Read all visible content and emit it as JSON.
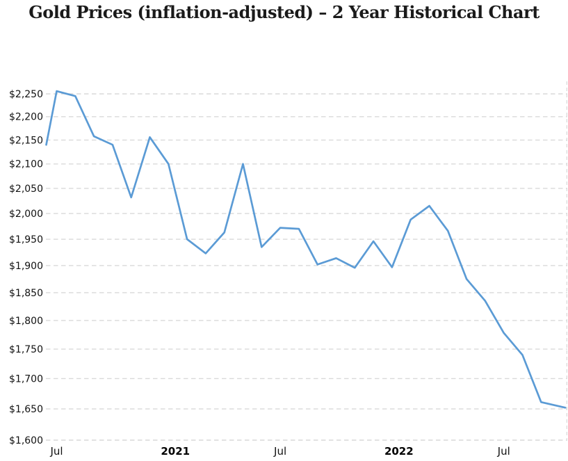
{
  "page": {
    "title": "Gold Prices (inflation-adjusted) – 2 Year Historical Chart"
  },
  "colors": {
    "background": "#ffffff",
    "line": "#5b9bd5",
    "grid": "#d9d9d9",
    "title_text": "#1a1a1a",
    "axis_text": "#111111"
  },
  "chart_data": {
    "type": "line",
    "title": "Gold Prices (inflation-adjusted) – 2 Year Historical Chart",
    "legend": "none",
    "grid": "horizontal-dashed",
    "ylabel": "",
    "xlabel": "",
    "y_axis": {
      "scale": "log",
      "unit": "USD per troy ounce",
      "min": 1600,
      "max": 2250,
      "tick_step": 50,
      "ticks": [
        {
          "value": 2250,
          "label": "$2,250"
        },
        {
          "value": 2200,
          "label": "$2,200"
        },
        {
          "value": 2150,
          "label": "$2,150"
        },
        {
          "value": 2100,
          "label": "$2,100"
        },
        {
          "value": 2050,
          "label": "$2,050"
        },
        {
          "value": 2000,
          "label": "$2,000"
        },
        {
          "value": 1950,
          "label": "$1,950"
        },
        {
          "value": 1900,
          "label": "$1,900"
        },
        {
          "value": 1850,
          "label": "$1,850"
        },
        {
          "value": 1800,
          "label": "$1,800"
        },
        {
          "value": 1750,
          "label": "$1,750"
        },
        {
          "value": 1700,
          "label": "$1,700"
        },
        {
          "value": 1650,
          "label": "$1,650"
        },
        {
          "value": 1600,
          "label": "$1,600"
        }
      ]
    },
    "x_axis": {
      "unit": "months, t = months since Jul 2020",
      "ticks": [
        {
          "t": 0,
          "label": "Jul",
          "bold": false
        },
        {
          "t": 6.37,
          "label": "2021",
          "bold": true
        },
        {
          "t": 12,
          "label": "Jul",
          "bold": false
        },
        {
          "t": 18.37,
          "label": "2022",
          "bold": true
        },
        {
          "t": 24,
          "label": "Jul",
          "bold": false
        }
      ]
    },
    "series": [
      {
        "name": "Gold price (inflation-adjusted)",
        "points": [
          {
            "date": "2020-06",
            "t": -0.56,
            "value": 2140
          },
          {
            "date": "2020-07",
            "t": 0,
            "value": 2256
          },
          {
            "date": "2020-08",
            "t": 1,
            "value": 2245
          },
          {
            "date": "2020-09",
            "t": 2,
            "value": 2158
          },
          {
            "date": "2020-10",
            "t": 3,
            "value": 2140
          },
          {
            "date": "2020-11",
            "t": 4,
            "value": 2032
          },
          {
            "date": "2020-12",
            "t": 5,
            "value": 2156
          },
          {
            "date": "2021-01",
            "t": 6,
            "value": 2100
          },
          {
            "date": "2021-02",
            "t": 7,
            "value": 1950
          },
          {
            "date": "2021-03",
            "t": 8,
            "value": 1923
          },
          {
            "date": "2021-04",
            "t": 9,
            "value": 1963
          },
          {
            "date": "2021-05",
            "t": 10,
            "value": 2100
          },
          {
            "date": "2021-06",
            "t": 11,
            "value": 1935
          },
          {
            "date": "2021-07",
            "t": 12,
            "value": 1972
          },
          {
            "date": "2021-08",
            "t": 13,
            "value": 1970
          },
          {
            "date": "2021-09",
            "t": 14,
            "value": 1902
          },
          {
            "date": "2021-10",
            "t": 15,
            "value": 1914
          },
          {
            "date": "2021-11",
            "t": 16,
            "value": 1896
          },
          {
            "date": "2021-12",
            "t": 17,
            "value": 1946
          },
          {
            "date": "2022-01",
            "t": 18,
            "value": 1897
          },
          {
            "date": "2022-02",
            "t": 19,
            "value": 1988
          },
          {
            "date": "2022-03",
            "t": 20,
            "value": 2015
          },
          {
            "date": "2022-04",
            "t": 21,
            "value": 1966
          },
          {
            "date": "2022-05",
            "t": 22,
            "value": 1875
          },
          {
            "date": "2022-06",
            "t": 23,
            "value": 1835
          },
          {
            "date": "2022-07",
            "t": 24,
            "value": 1778
          },
          {
            "date": "2022-08",
            "t": 25,
            "value": 1740
          },
          {
            "date": "2022-09",
            "t": 26,
            "value": 1661
          },
          {
            "date": "2022-10",
            "t": 27.3,
            "value": 1652
          }
        ]
      }
    ]
  }
}
